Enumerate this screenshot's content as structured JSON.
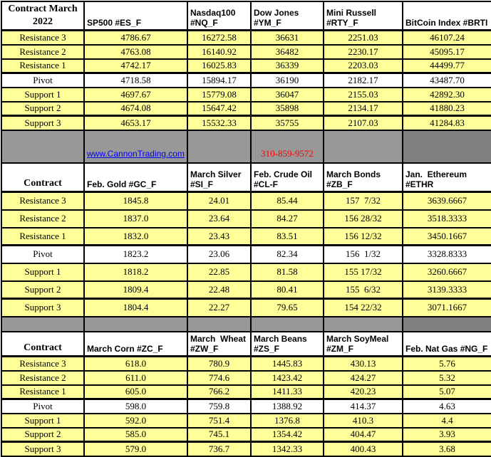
{
  "colors": {
    "yellow": "#FFFF99",
    "white": "#FFFFFF",
    "gray_light": "#989898",
    "gray_dark": "#7F7F7F",
    "border": "#000000",
    "link_blue": "#0000FF",
    "phone_red": "#FF0000"
  },
  "row_labels": [
    "Resistance 3",
    "Resistance 2",
    "Resistance 1",
    "Pivot",
    "Support 1",
    "Support 2",
    "Support 3"
  ],
  "banner": {
    "link_text": "www.CannonTrading.com",
    "phone": "310-859-9572"
  },
  "tables": [
    {
      "corner_label": "Contract March\n2022",
      "columns": [
        {
          "header": "SP500 #ES_F",
          "values": [
            "4786.67",
            "4763.08",
            "4742.17",
            "4718.58",
            "4697.67",
            "4674.08",
            "4653.17"
          ]
        },
        {
          "header": "Nasdaq100\n#NQ_F",
          "values": [
            "16272.58",
            "16140.92",
            "16025.83",
            "15894.17",
            "15779.08",
            "15647.42",
            "15532.33"
          ]
        },
        {
          "header": "Dow Jones\n#YM_F",
          "values": [
            "36631",
            "36482",
            "36339",
            "36190",
            "36047",
            "35898",
            "35755"
          ]
        },
        {
          "header": "Mini Russell\n#RTY_F",
          "values": [
            "2251.03",
            "2230.17",
            "2203.03",
            "2182.17",
            "2155.03",
            "2134.17",
            "2107.03"
          ]
        },
        {
          "header": "BitCoin Index #BRTI",
          "values": [
            "46107.24",
            "45095.17",
            "44499.77",
            "43487.70",
            "42892.30",
            "41880.23",
            "41284.83"
          ]
        }
      ]
    },
    {
      "corner_label": "Contract",
      "columns": [
        {
          "header": "Feb. Gold #GC_F",
          "values": [
            "1845.8",
            "1837.0",
            "1832.0",
            "1823.2",
            "1818.2",
            "1809.4",
            "1804.4"
          ]
        },
        {
          "header": "March Silver\n#SI_F",
          "values": [
            "24.01",
            "23.64",
            "23.43",
            "23.06",
            "22.85",
            "22.48",
            "22.27"
          ]
        },
        {
          "header": "Feb. Crude Oil\n#CL-F",
          "values": [
            "85.44",
            "84.27",
            "83.51",
            "82.34",
            "81.58",
            "80.41",
            "79.65"
          ]
        },
        {
          "header": "March Bonds\n#ZB_F",
          "values": [
            "157  7/32",
            "156 28/32",
            "156 12/32",
            "156  1/32",
            "155 17/32",
            "155  6/32",
            "154 22/32"
          ]
        },
        {
          "header": "Jan.  Ethereum\n#ETHR",
          "values": [
            "3639.6667",
            "3518.3333",
            "3450.1667",
            "3328.8333",
            "3260.6667",
            "3139.3333",
            "3071.1667"
          ]
        }
      ]
    },
    {
      "corner_label": "Contract",
      "columns": [
        {
          "header": "March Corn #ZC_F",
          "values": [
            "618.0",
            "611.0",
            "605.0",
            "598.0",
            "592.0",
            "585.0",
            "579.0"
          ]
        },
        {
          "header": "March  Wheat\n#ZW_F",
          "values": [
            "780.9",
            "774.6",
            "766.2",
            "759.8",
            "751.4",
            "745.1",
            "736.7"
          ]
        },
        {
          "header": "March Beans\n#ZS_F",
          "values": [
            "1445.83",
            "1423.42",
            "1411.33",
            "1388.92",
            "1376.8",
            "1354.42",
            "1342.33"
          ]
        },
        {
          "header": "March SoyMeal\n#ZM_F",
          "values": [
            "430.13",
            "424.27",
            "420.23",
            "414.37",
            "410.3",
            "404.47",
            "400.43"
          ]
        },
        {
          "header": "Feb. Nat Gas #NG_F",
          "values": [
            "5.76",
            "5.32",
            "5.07",
            "4.63",
            "4.4",
            "3.93",
            "3.68"
          ]
        }
      ]
    }
  ]
}
